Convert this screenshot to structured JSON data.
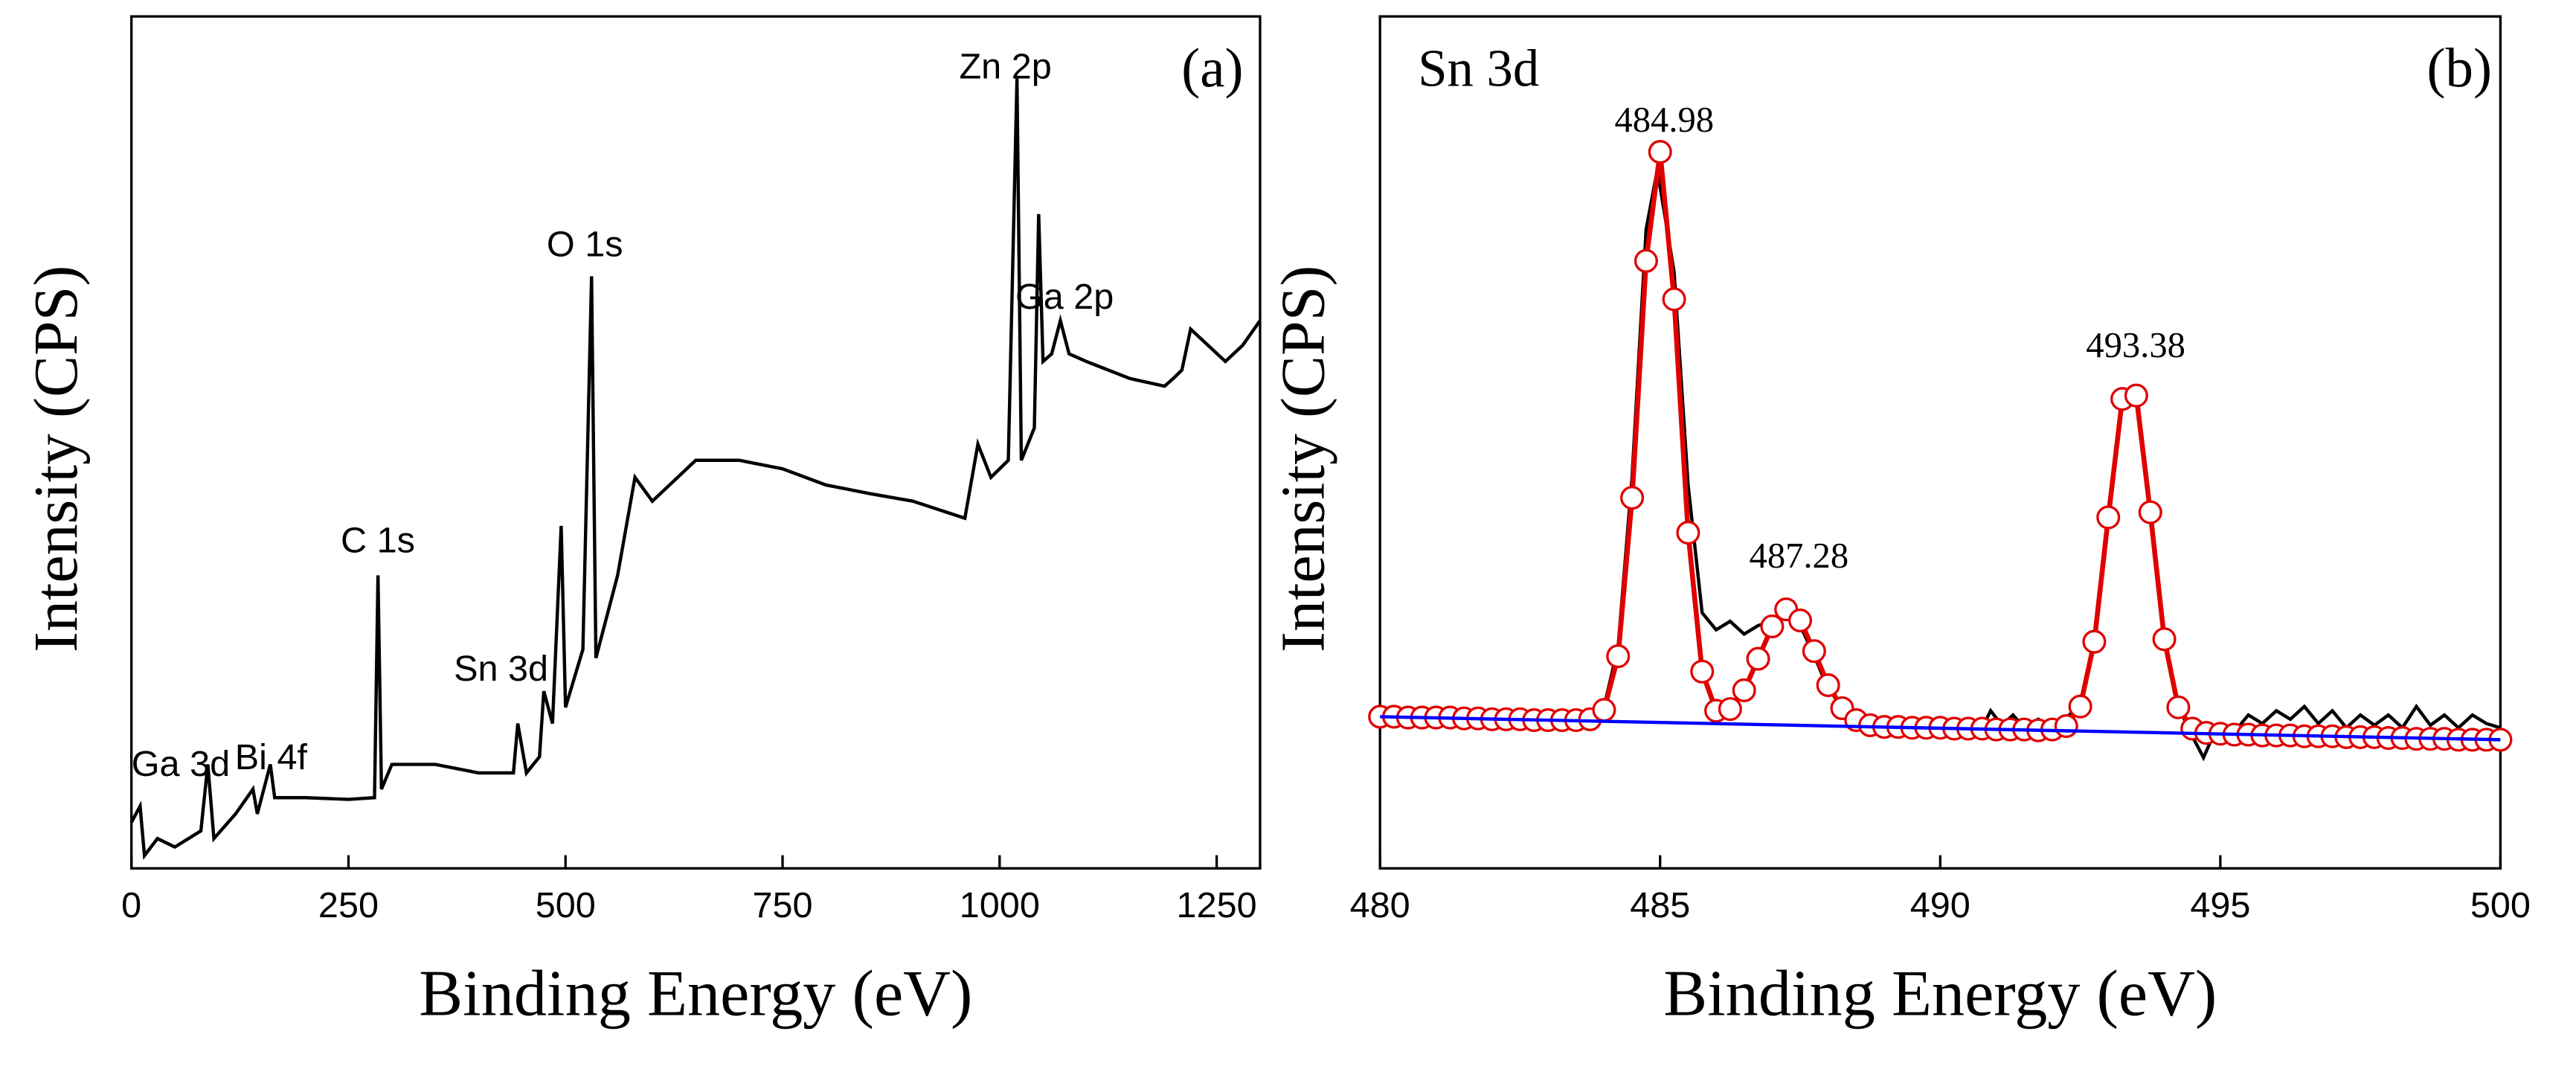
{
  "chart_data": [
    {
      "type": "line",
      "panel": "(a)",
      "xlabel": "Binding Energy (eV)",
      "ylabel": "Intensity (CPS)",
      "xlim": [
        0,
        1300
      ],
      "xticks": [
        0,
        250,
        500,
        750,
        1000,
        1250
      ],
      "ylim": [
        0,
        100
      ],
      "annotations": [
        "Zn 2p",
        "O 1s",
        "Ga 2p",
        "C 1s",
        "Sn 3d",
        "Bi 4f",
        "Ga 3d"
      ],
      "series": [
        {
          "color": "#000000",
          "x": [
            0,
            10,
            15,
            30,
            50,
            80,
            88,
            95,
            120,
            140,
            145,
            160,
            165,
            200,
            250,
            280,
            284,
            288,
            300,
            350,
            400,
            440,
            445,
            455,
            470,
            475,
            485,
            495,
            500,
            520,
            530,
            535,
            560,
            580,
            600,
            650,
            700,
            750,
            800,
            850,
            900,
            960,
            975,
            990,
            1010,
            1020,
            1025,
            1040,
            1045,
            1050,
            1060,
            1070,
            1080,
            1100,
            1150,
            1190,
            1200,
            1210,
            1220,
            1240,
            1260,
            1280,
            1300
          ],
          "values": [
            5.4,
            7.3,
            1.5,
            3.5,
            2.5,
            4.4,
            12.2,
            3.5,
            6.4,
            9.3,
            6.4,
            12.2,
            8.3,
            8.3,
            8.1,
            8.3,
            34.4,
            9.3,
            12.2,
            12.2,
            11.2,
            11.2,
            17.0,
            11.2,
            13.1,
            20.8,
            17.0,
            40.2,
            18.9,
            25.7,
            69.5,
            24.7,
            34.4,
            45.9,
            43.1,
            47.9,
            47.9,
            46.9,
            45.0,
            44.0,
            43.1,
            41.1,
            49.8,
            45.9,
            47.9,
            92.7,
            47.9,
            51.7,
            76.8,
            59.5,
            60.4,
            64.3,
            60.4,
            59.5,
            57.5,
            56.6,
            57.5,
            58.5,
            63.3,
            61.4,
            59.5,
            61.4,
            64.3
          ]
        }
      ]
    },
    {
      "type": "line",
      "panel": "(b)",
      "xlabel": "Binding Energy (eV)",
      "ylabel": "Intensity (CPS)",
      "xlim": [
        480,
        500
      ],
      "xticks": [
        480,
        485,
        490,
        495,
        500
      ],
      "ylim": [
        0,
        100
      ],
      "annotations": [
        "Sn 3d",
        "484.98",
        "487.28",
        "493.38"
      ],
      "series": [
        {
          "color": "#000000",
          "x": [
            480,
            482,
            483.5,
            484,
            484.25,
            484.5,
            484.75,
            484.95,
            485.25,
            485.5,
            485.75,
            486,
            486.25,
            486.5,
            486.75,
            487,
            487.25,
            487.5,
            487.75,
            488,
            488.5,
            489,
            490,
            490.75,
            490.9,
            491.1,
            491.3,
            491.5,
            491.75,
            492,
            492.5,
            492.75,
            493,
            493.25,
            493.5,
            493.75,
            494,
            494.25,
            494.5,
            494.7,
            494.9,
            495.25,
            495.5,
            495.75,
            496,
            496.25,
            496.5,
            496.75,
            497,
            497.25,
            497.5,
            497.75,
            498,
            498.25,
            498.5,
            498.75,
            499,
            499.25,
            499.5,
            499.75,
            500
          ],
          "values": [
            17.5,
            17.4,
            17.5,
            19,
            26,
            46,
            75,
            82,
            70,
            45,
            30,
            28,
            29,
            27.5,
            28.5,
            29,
            30,
            28.5,
            25,
            21,
            17.5,
            16.8,
            16.7,
            16.5,
            18.5,
            16.8,
            18,
            16.5,
            17.5,
            16.5,
            19,
            27,
            42,
            55,
            55,
            42,
            27,
            19,
            15.5,
            13,
            16,
            16,
            18,
            17,
            18.5,
            17.5,
            19,
            17,
            18.5,
            16.5,
            18,
            16.8,
            18,
            16.5,
            19,
            16.8,
            18,
            16.5,
            18,
            17,
            16.5
          ]
        },
        {
          "color": "#e00000",
          "marker": "circle",
          "x": [
            480,
            480.25,
            480.5,
            480.75,
            481,
            481.25,
            481.5,
            481.75,
            482,
            482.25,
            482.5,
            482.75,
            483,
            483.25,
            483.5,
            483.75,
            484,
            484.25,
            484.5,
            484.75,
            485,
            485.25,
            485.5,
            485.75,
            486,
            486.25,
            486.5,
            486.75,
            487,
            487.25,
            487.5,
            487.75,
            488,
            488.25,
            488.5,
            488.75,
            489,
            489.25,
            489.5,
            489.75,
            490,
            490.25,
            490.5,
            490.75,
            491,
            491.25,
            491.5,
            491.75,
            492,
            492.25,
            492.5,
            492.75,
            493,
            493.25,
            493.5,
            493.75,
            494,
            494.25,
            494.5,
            494.75,
            495,
            495.25,
            495.5,
            495.75,
            496,
            496.25,
            496.5,
            496.75,
            497,
            497.25,
            497.5,
            497.75,
            498,
            498.25,
            498.5,
            498.75,
            499,
            499.25,
            499.5,
            499.75,
            500
          ],
          "values": [
            17.8,
            17.8,
            17.7,
            17.7,
            17.7,
            17.7,
            17.6,
            17.6,
            17.5,
            17.5,
            17.5,
            17.4,
            17.4,
            17.4,
            17.4,
            17.5,
            18.6,
            24.9,
            43.5,
            71.3,
            84.1,
            66.8,
            39.4,
            23.1,
            18.5,
            18.7,
            20.9,
            24.6,
            28.4,
            30.4,
            29.1,
            25.5,
            21.5,
            18.8,
            17.4,
            16.8,
            16.6,
            16.6,
            16.5,
            16.5,
            16.5,
            16.4,
            16.4,
            16.4,
            16.3,
            16.3,
            16.3,
            16.2,
            16.3,
            16.7,
            19.0,
            26.6,
            41.2,
            55.1,
            55.5,
            41.8,
            26.9,
            18.9,
            16.4,
            15.9,
            15.8,
            15.7,
            15.7,
            15.6,
            15.6,
            15.6,
            15.5,
            15.5,
            15.5,
            15.4,
            15.4,
            15.4,
            15.3,
            15.3,
            15.2,
            15.2,
            15.2,
            15.1,
            15.1,
            15.1,
            15.1
          ]
        },
        {
          "color": "#0000ff",
          "x": [
            480,
            500
          ],
          "values": [
            17.8,
            15.1
          ]
        }
      ]
    }
  ]
}
